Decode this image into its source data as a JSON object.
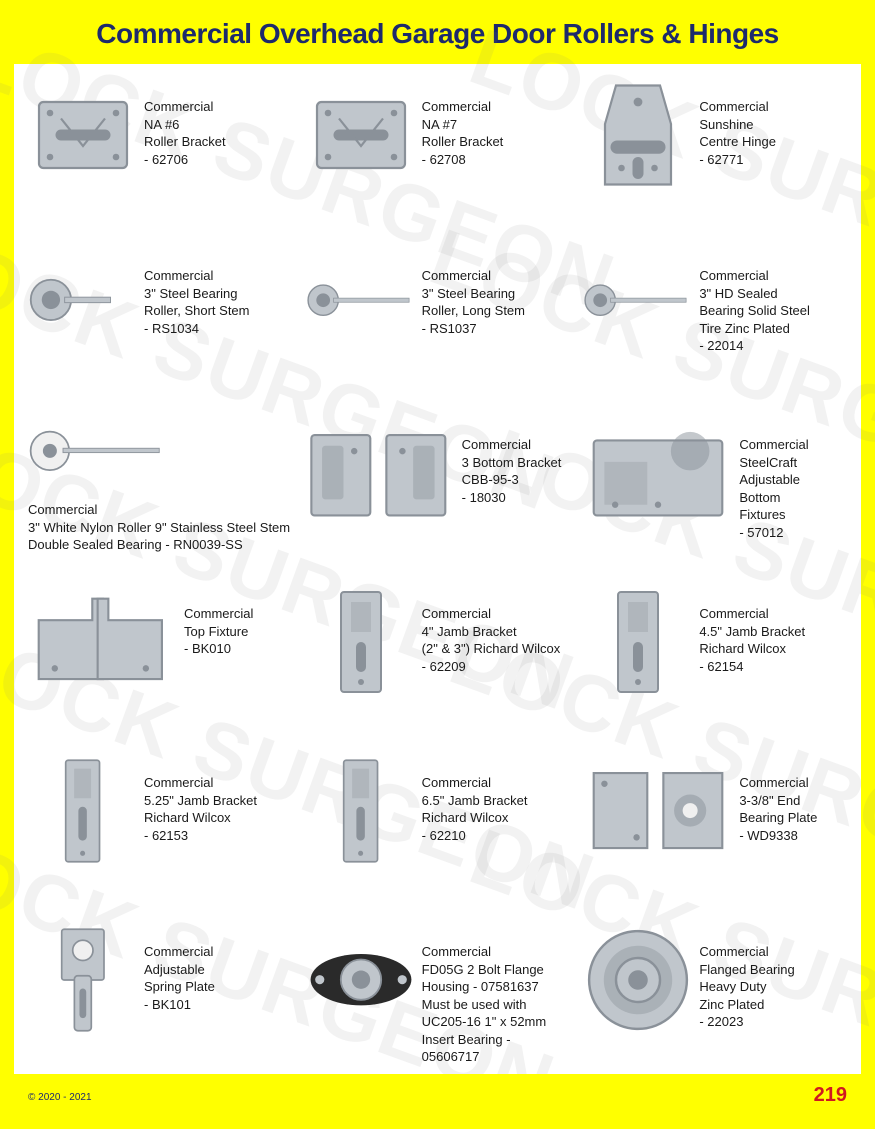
{
  "page": {
    "title": "Commercial Overhead Garage Door Rollers & Hinges",
    "page_number": "219",
    "copyright": "© 2020 - 2021",
    "watermark_text": "LOCK SURGEON",
    "colors": {
      "header_bg": "#ffff00",
      "title_color": "#1d2a6c",
      "content_bg": "#ffffff",
      "text_color": "#1a1a1a",
      "pagenum_color": "#d01820",
      "watermark_color": "rgba(128,128,128,0.10)",
      "part_metal": "#c0c6cc",
      "part_metal_dark": "#8a9199",
      "part_white": "#f0f0f0",
      "part_black": "#2a2a2a"
    }
  },
  "items": [
    {
      "name": "Commercial",
      "line2": "NA #6",
      "line3": "Roller Bracket",
      "sku": "- 62706",
      "shape": "bracket"
    },
    {
      "name": "Commercial",
      "line2": "NA #7",
      "line3": "Roller Bracket",
      "sku": "- 62708",
      "shape": "bracket"
    },
    {
      "name": "Commercial",
      "line2": "Sunshine",
      "line3": "Centre Hinge",
      "sku": "- 62771",
      "shape": "hinge"
    },
    {
      "name": "Commercial",
      "line2": "3\" Steel Bearing",
      "line3": "Roller, Short Stem",
      "sku": "- RS1034",
      "shape": "roller-short"
    },
    {
      "name": "Commercial",
      "line2": "3\" Steel Bearing",
      "line3": "Roller, Long Stem",
      "sku": "- RS1037",
      "shape": "roller-long"
    },
    {
      "name": "Commercial",
      "line2": "3\" HD Sealed",
      "line3": "Bearing Solid Steel",
      "line4": "Tire Zinc Plated",
      "sku": "- 22014",
      "shape": "roller-long"
    },
    {
      "name": "Commercial",
      "below": "3\" White Nylon Roller 9\" Stainless Steel Stem Double Sealed Bearing - RN0039-SS",
      "shape": "roller-white",
      "col": true
    },
    {
      "name": "Commercial",
      "line2": "3 Bottom Bracket",
      "line3": "CBB-95-3",
      "sku": "- 18030",
      "shape": "bottom-bracket",
      "wide": true
    },
    {
      "name": "Commercial",
      "line2": "SteelCraft",
      "line3": "Adjustable",
      "line4": "Bottom",
      "line5": "Fixtures",
      "sku": "- 57012",
      "shape": "adj-bottom",
      "wide": true
    },
    {
      "name": "Commercial",
      "line2": "Top Fixture",
      "sku": "- BK010",
      "shape": "top-fixture",
      "wide": true
    },
    {
      "name": "Commercial",
      "line2": "4\" Jamb Bracket",
      "line3": "(2\" & 3\") Richard Wilcox",
      "sku": "- 62209",
      "shape": "jamb"
    },
    {
      "name": "Commercial",
      "line2": "4.5\" Jamb Bracket",
      "line3": "Richard Wilcox",
      "sku": "- 62154",
      "shape": "jamb"
    },
    {
      "name": "Commercial",
      "line2": "5.25\" Jamb Bracket",
      "line3": "Richard Wilcox",
      "sku": "- 62153",
      "shape": "jamb-tall"
    },
    {
      "name": "Commercial",
      "line2": "6.5\" Jamb Bracket",
      "line3": "Richard Wilcox",
      "sku": "- 62210",
      "shape": "jamb-tall"
    },
    {
      "name": "Commercial",
      "line2": "3-3/8\" End",
      "line3": "Bearing Plate",
      "sku": "- WD9338",
      "shape": "end-plate",
      "wide": true
    },
    {
      "name": "Commercial",
      "line2": "Adjustable",
      "line3": "Spring Plate",
      "sku": "- BK101",
      "shape": "spring-plate"
    },
    {
      "name": "Commercial",
      "line2": "FD05G 2 Bolt Flange",
      "line3": "Housing - 07581637",
      "line4": "Must be used with",
      "line5": "UC205-16 1\" x 52mm",
      "sku": "Insert Bearing - 05606717",
      "shape": "flange"
    },
    {
      "name": "Commercial",
      "line2": "Flanged Bearing",
      "line3": "Heavy Duty",
      "line4": "Zinc Plated",
      "sku": "- 22023",
      "shape": "bearing"
    }
  ]
}
